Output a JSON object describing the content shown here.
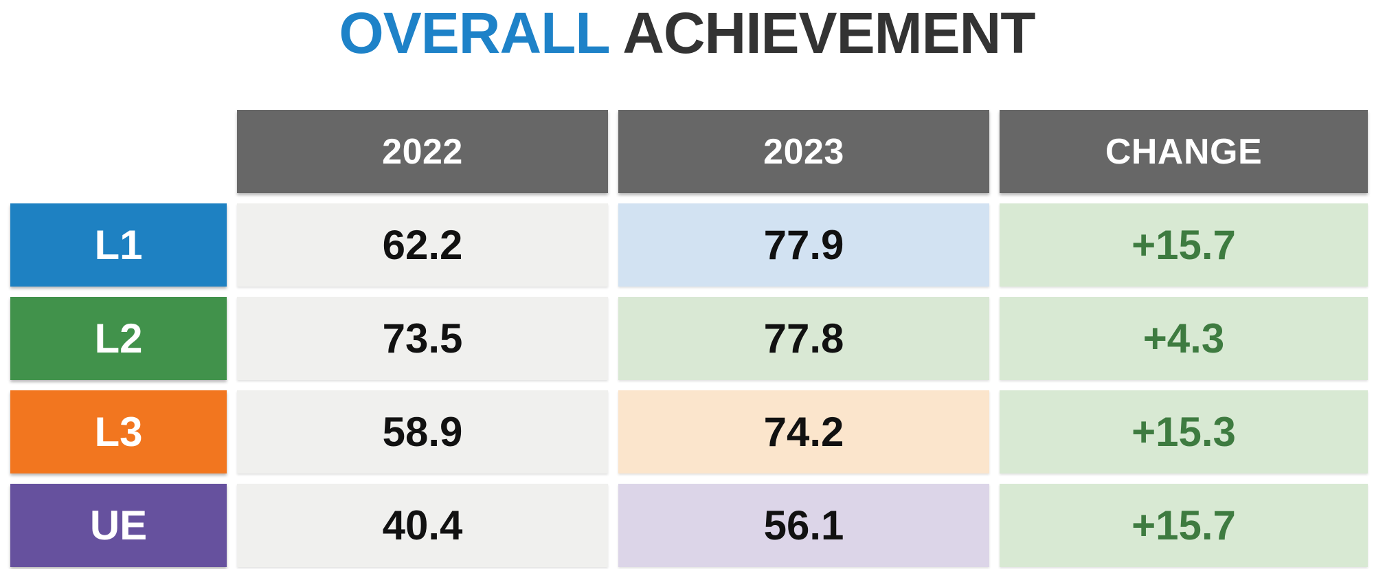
{
  "title": {
    "highlight": "OVERALL",
    "rest": "ACHIEVEMENT"
  },
  "table": {
    "columns": [
      "2022",
      "2023",
      "CHANGE"
    ],
    "rows": [
      {
        "label": "L1",
        "v2022": "62.2",
        "v2023": "77.9",
        "change": "+15.7"
      },
      {
        "label": "L2",
        "v2022": "73.5",
        "v2023": "77.8",
        "change": "+4.3"
      },
      {
        "label": "L3",
        "v2022": "58.9",
        "v2023": "74.2",
        "change": "+15.3"
      },
      {
        "label": "UE",
        "v2022": "40.4",
        "v2023": "56.1",
        "change": "+15.7"
      }
    ]
  },
  "colors": {
    "title_highlight": "#1E82C8",
    "title_rest": "#333333",
    "header_bg": "#676767",
    "header_text": "#FFFFFF",
    "row_label_text": "#FFFFFF",
    "col2022_bg": "#F0F0EE",
    "value_text": "#111111",
    "change_bg": "#D8E9D3",
    "change_text": "#3E7B40",
    "rows": {
      "L1": {
        "label_bg": "#1E81C2",
        "y2023_bg": "#D2E2F2"
      },
      "L2": {
        "label_bg": "#41924B",
        "y2023_bg": "#D9E8D4"
      },
      "L3": {
        "label_bg": "#F2761F",
        "y2023_bg": "#FBE5CC"
      },
      "UE": {
        "label_bg": "#66519E",
        "y2023_bg": "#DCD5E8"
      }
    }
  },
  "chart_data": {
    "type": "table",
    "title": "OVERALL ACHIEVEMENT",
    "columns": [
      "",
      "2022",
      "2023",
      "CHANGE"
    ],
    "rows": [
      [
        "L1",
        62.2,
        77.9,
        "+15.7"
      ],
      [
        "L2",
        73.5,
        77.8,
        "+4.3"
      ],
      [
        "L3",
        58.9,
        74.2,
        "+15.3"
      ],
      [
        "UE",
        40.4,
        56.1,
        "+15.7"
      ]
    ]
  }
}
